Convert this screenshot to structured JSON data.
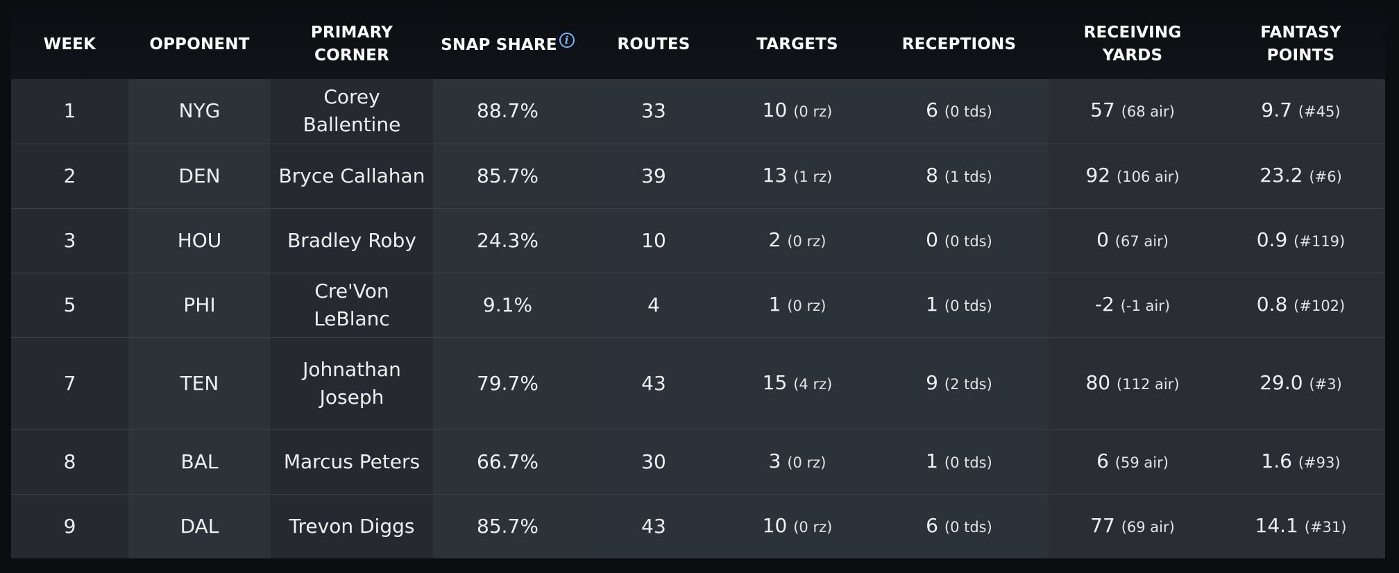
{
  "headers": {
    "week": "WEEK",
    "opponent": "OPPONENT",
    "primary_corner": "PRIMARY CORNER",
    "snap_share": "SNAP SHARE",
    "routes": "ROUTES",
    "targets": "TARGETS",
    "receptions": "RECEPTIONS",
    "receiving_yards": "RECEIVING YARDS",
    "fantasy_points_line1": "FANTASY",
    "fantasy_points_line2": "POINTS",
    "info_icon_glyph": "i"
  },
  "rows": [
    {
      "week": "1",
      "opponent": "NYG",
      "corner": "Corey Ballentine",
      "snap_share": "88.7%",
      "routes": "33",
      "targets": "10",
      "targets_sub": "(0 rz)",
      "receptions": "6",
      "receptions_sub": "(0 tds)",
      "yards": "57",
      "yards_sub": "(68 air)",
      "points": "9.7",
      "points_sub": "(#45)"
    },
    {
      "week": "2",
      "opponent": "DEN",
      "corner": "Bryce Callahan",
      "snap_share": "85.7%",
      "routes": "39",
      "targets": "13",
      "targets_sub": "(1 rz)",
      "receptions": "8",
      "receptions_sub": "(1 tds)",
      "yards": "92",
      "yards_sub": "(106 air)",
      "points": "23.2",
      "points_sub": "(#6)"
    },
    {
      "week": "3",
      "opponent": "HOU",
      "corner": "Bradley Roby",
      "snap_share": "24.3%",
      "routes": "10",
      "targets": "2",
      "targets_sub": "(0 rz)",
      "receptions": "0",
      "receptions_sub": "(0 tds)",
      "yards": "0",
      "yards_sub": "(67 air)",
      "points": "0.9",
      "points_sub": "(#119)"
    },
    {
      "week": "5",
      "opponent": "PHI",
      "corner": "Cre'Von LeBlanc",
      "snap_share": "9.1%",
      "routes": "4",
      "targets": "1",
      "targets_sub": "(0 rz)",
      "receptions": "1",
      "receptions_sub": "(0 tds)",
      "yards": "-2",
      "yards_sub": "(-1 air)",
      "points": "0.8",
      "points_sub": "(#102)"
    },
    {
      "week": "7",
      "opponent": "TEN",
      "corner": "Johnathan Joseph",
      "snap_share": "79.7%",
      "routes": "43",
      "targets": "15",
      "targets_sub": "(4 rz)",
      "receptions": "9",
      "receptions_sub": "(2 tds)",
      "yards": "80",
      "yards_sub": "(112 air)",
      "points": "29.0",
      "points_sub": "(#3)"
    },
    {
      "week": "8",
      "opponent": "BAL",
      "corner": "Marcus Peters",
      "snap_share": "66.7%",
      "routes": "30",
      "targets": "3",
      "targets_sub": "(0 rz)",
      "receptions": "1",
      "receptions_sub": "(0 tds)",
      "yards": "6",
      "yards_sub": "(59 air)",
      "points": "1.6",
      "points_sub": "(#93)"
    },
    {
      "week": "9",
      "opponent": "DAL",
      "corner": "Trevon Diggs",
      "snap_share": "85.7%",
      "routes": "43",
      "targets": "10",
      "targets_sub": "(0 rz)",
      "receptions": "6",
      "receptions_sub": "(0 tds)",
      "yards": "77",
      "yards_sub": "(69 air)",
      "points": "14.1",
      "points_sub": "(#31)"
    }
  ],
  "colors": {
    "background": "#0b0d11",
    "cell": "#2a2f35",
    "info_icon": "#6db3ff",
    "text": "#eef0f2"
  }
}
